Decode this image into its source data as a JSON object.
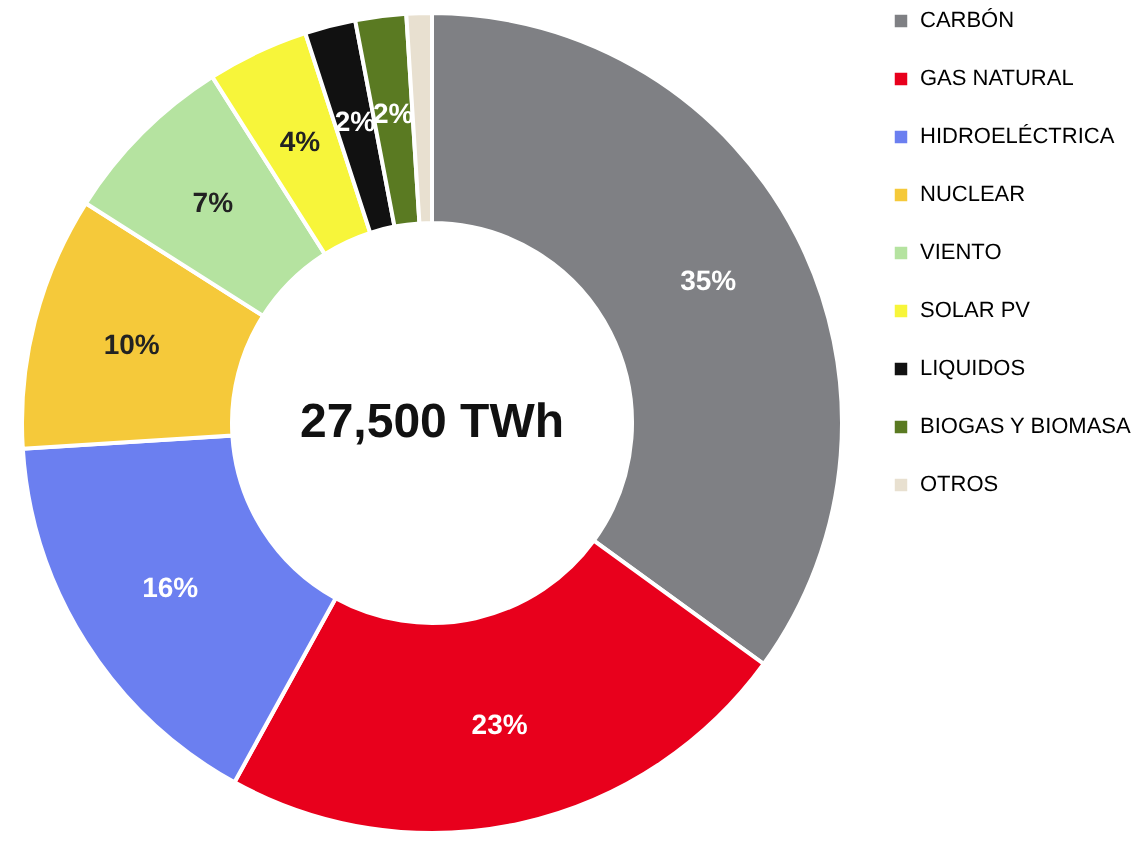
{
  "chart_data": {
    "type": "donut",
    "categories": [
      "CARBÓN",
      "GAS NATURAL",
      "HIDROELÉCTRICA",
      "NUCLEAR",
      "VIENTO",
      "SOLAR PV",
      "LIQUIDOS",
      "BIOGAS Y BIOMASA",
      "OTROS"
    ],
    "values": [
      35,
      23,
      16,
      10,
      7,
      4,
      2,
      2,
      1
    ],
    "colors": [
      "#7f8084",
      "#e8001c",
      "#6b7ff0",
      "#f5c93a",
      "#b5e3a0",
      "#f7f53a",
      "#111111",
      "#5a7a22",
      "#e8e0d0"
    ],
    "value_labels": [
      "35%",
      "23%",
      "16%",
      "10%",
      "7%",
      "4%",
      "2%",
      "2%",
      null
    ],
    "annotations": [
      "27,500 TWh"
    ],
    "legend": "right"
  }
}
